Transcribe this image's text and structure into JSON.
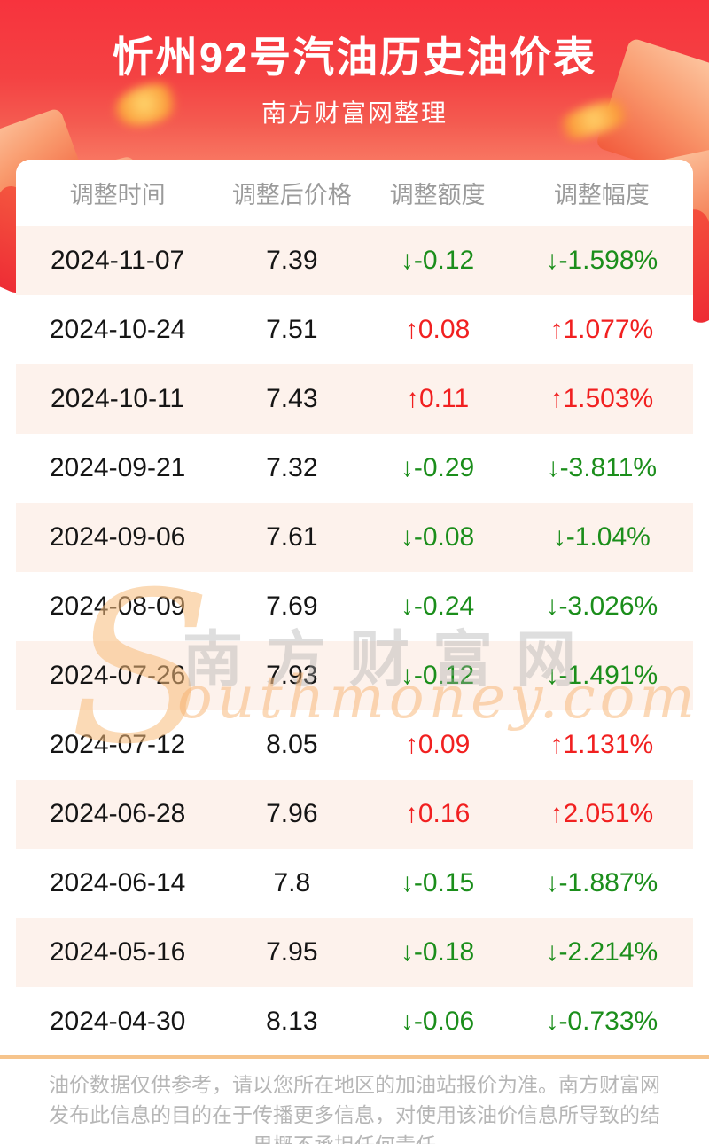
{
  "page": {
    "title": "忻州92号汽油历史油价表",
    "subtitle": "南方财富网整理"
  },
  "table": {
    "headers": [
      "调整时间",
      "调整后价格",
      "调整额度",
      "调整幅度"
    ],
    "arrow_up": "↑",
    "arrow_down": "↓",
    "rows": [
      {
        "date": "2024-11-07",
        "price": "7.39",
        "change": "-0.12",
        "pct": "-1.598%",
        "dir": "down"
      },
      {
        "date": "2024-10-24",
        "price": "7.51",
        "change": "0.08",
        "pct": "1.077%",
        "dir": "up"
      },
      {
        "date": "2024-10-11",
        "price": "7.43",
        "change": "0.11",
        "pct": "1.503%",
        "dir": "up"
      },
      {
        "date": "2024-09-21",
        "price": "7.32",
        "change": "-0.29",
        "pct": "-3.811%",
        "dir": "down"
      },
      {
        "date": "2024-09-06",
        "price": "7.61",
        "change": "-0.08",
        "pct": "-1.04%",
        "dir": "down"
      },
      {
        "date": "2024-08-09",
        "price": "7.69",
        "change": "-0.24",
        "pct": "-3.026%",
        "dir": "down"
      },
      {
        "date": "2024-07-26",
        "price": "7.93",
        "change": "-0.12",
        "pct": "-1.491%",
        "dir": "down"
      },
      {
        "date": "2024-07-12",
        "price": "8.05",
        "change": "0.09",
        "pct": "1.131%",
        "dir": "up"
      },
      {
        "date": "2024-06-28",
        "price": "7.96",
        "change": "0.16",
        "pct": "2.051%",
        "dir": "up"
      },
      {
        "date": "2024-06-14",
        "price": "7.8",
        "change": "-0.15",
        "pct": "-1.887%",
        "dir": "down"
      },
      {
        "date": "2024-05-16",
        "price": "7.95",
        "change": "-0.18",
        "pct": "-2.214%",
        "dir": "down"
      },
      {
        "date": "2024-04-30",
        "price": "8.13",
        "change": "-0.06",
        "pct": "-0.733%",
        "dir": "down"
      }
    ]
  },
  "watermark": {
    "initial": "S",
    "cn": "南方财富网",
    "en": "outhmoney.com"
  },
  "footer": {
    "disclaimer": "油价数据仅供参考，请以您所在地区的加油站报价为准。南方财富网发布此信息的目的在于传播更多信息，对使用该油价信息所导致的结果概不承担任何责任。"
  },
  "colors": {
    "banner_red_top": "#f7333d",
    "banner_red_bottom": "#fba88b",
    "up_red": "#f12020",
    "down_green": "#1b8e1b",
    "row_alt_bg": "#fdf2ec",
    "footer_accent_line": "#f6c48c"
  }
}
